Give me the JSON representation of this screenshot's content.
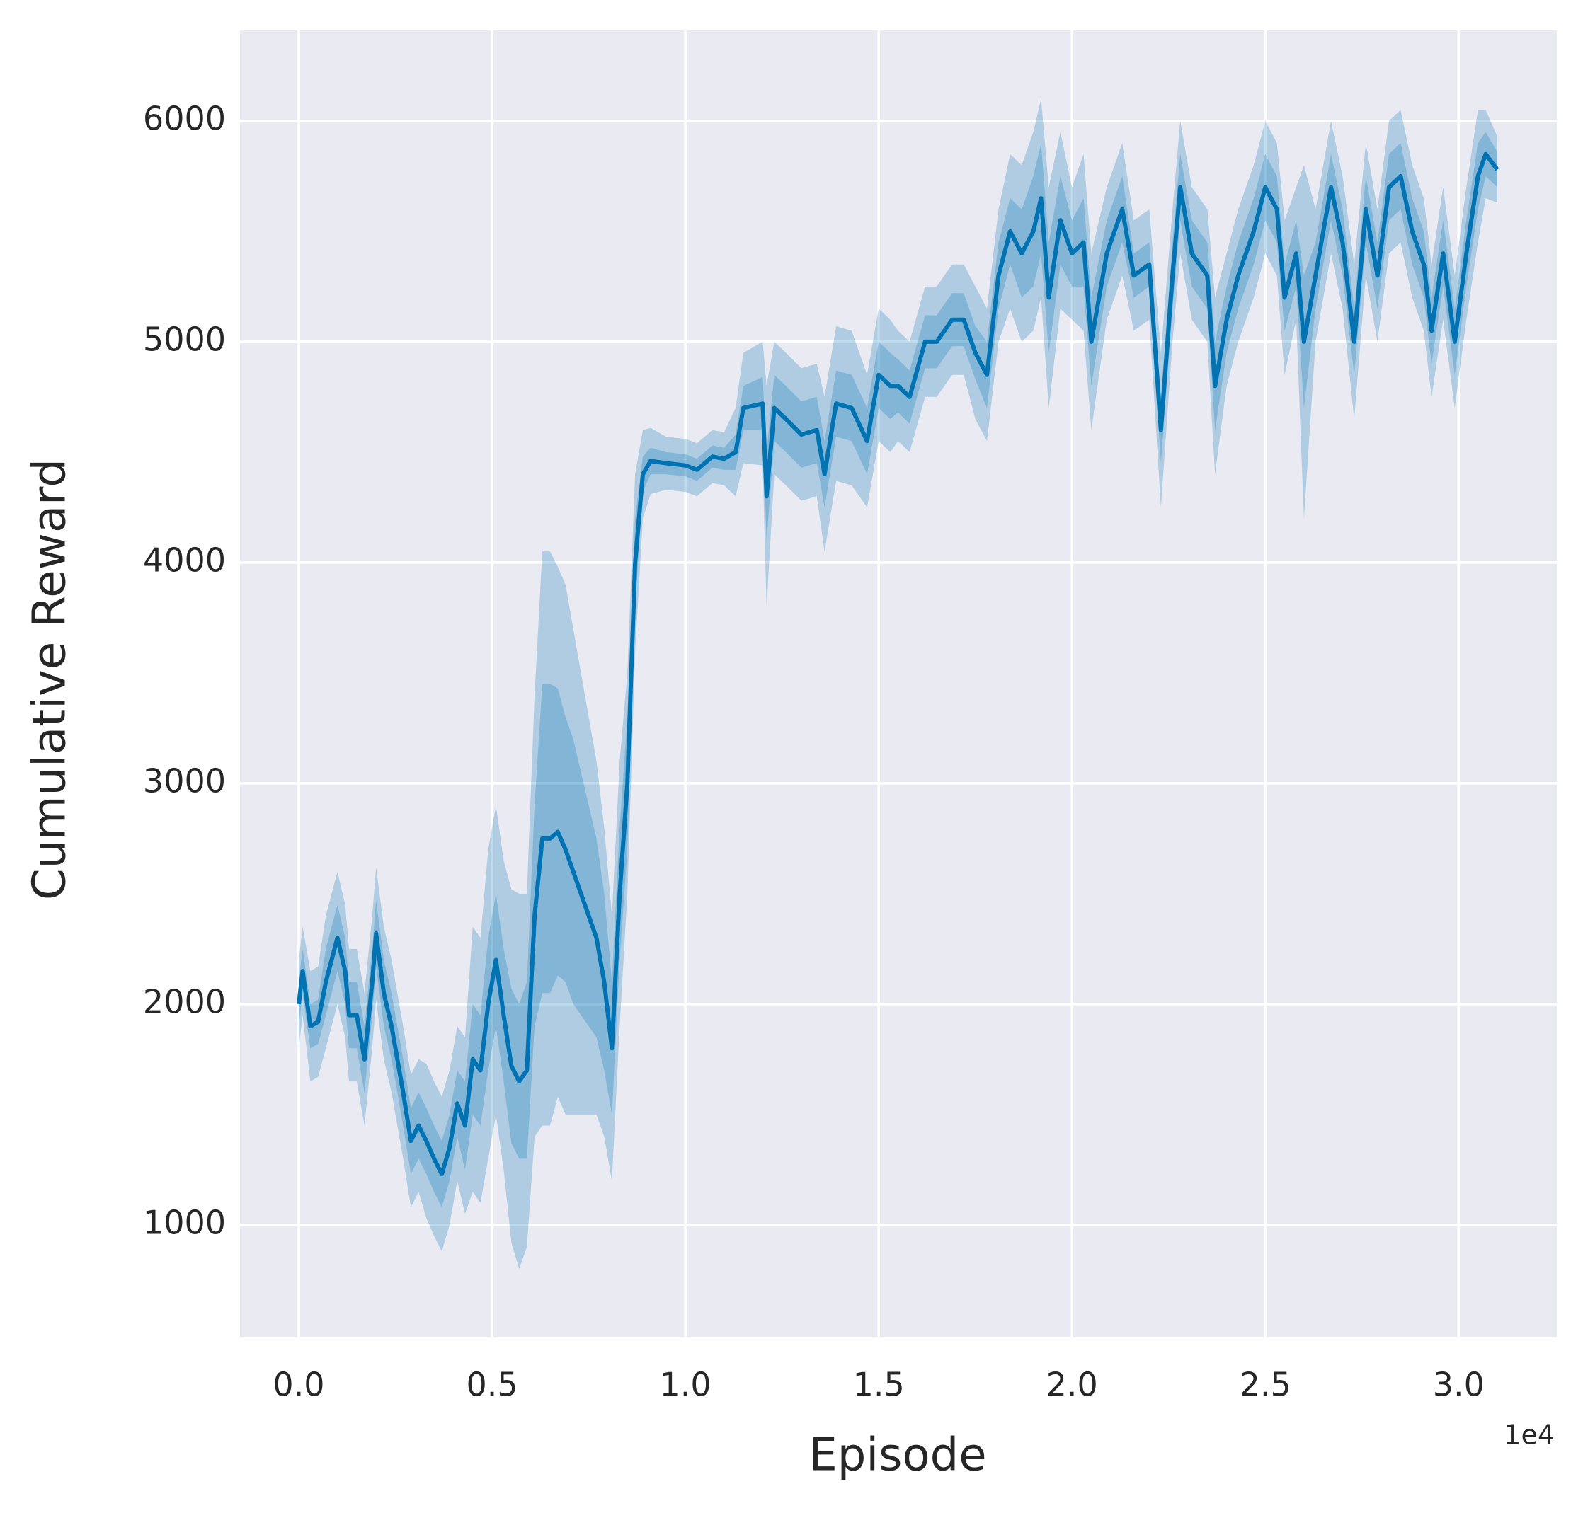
{
  "chart_data": {
    "type": "line",
    "x_label": "Episode",
    "y_label": "Cumulative Reward",
    "x_offset_label": "1e4",
    "xlim": [
      -1520,
      32540
    ],
    "ylim": [
      490,
      6410
    ],
    "xticks": [
      {
        "value": 0,
        "label": "0.0"
      },
      {
        "value": 5000,
        "label": "0.5"
      },
      {
        "value": 10000,
        "label": "1.0"
      },
      {
        "value": 15000,
        "label": "1.5"
      },
      {
        "value": 20000,
        "label": "2.0"
      },
      {
        "value": 25000,
        "label": "2.5"
      },
      {
        "value": 30000,
        "label": "3.0"
      }
    ],
    "yticks": [
      1000,
      2000,
      3000,
      4000,
      5000,
      6000
    ],
    "grid": true,
    "background": "#eaeaf2",
    "x": [
      0,
      100,
      300,
      500,
      700,
      1000,
      1200,
      1300,
      1500,
      1700,
      1900,
      2000,
      2200,
      2400,
      2700,
      2900,
      3100,
      3300,
      3500,
      3700,
      3900,
      4100,
      4300,
      4500,
      4700,
      4900,
      5100,
      5300,
      5500,
      5700,
      5900,
      6100,
      6300,
      6500,
      6700,
      6900,
      7100,
      7300,
      7500,
      7700,
      7900,
      8100,
      8300,
      8500,
      8700,
      8900,
      9100,
      9500,
      10000,
      10300,
      10700,
      11000,
      11300,
      11500,
      12000,
      12100,
      12300,
      12600,
      13000,
      13400,
      13600,
      13900,
      14300,
      14700,
      15000,
      15300,
      15500,
      15800,
      16200,
      16500,
      16900,
      17200,
      17500,
      17800,
      18100,
      18400,
      18700,
      19000,
      19200,
      19400,
      19700,
      20000,
      20300,
      20500,
      20900,
      21300,
      21600,
      22000,
      22300,
      22600,
      22800,
      23100,
      23500,
      23700,
      24000,
      24300,
      24700,
      25000,
      25300,
      25500,
      25800,
      26000,
      26300,
      26700,
      27000,
      27300,
      27600,
      27900,
      28200,
      28500,
      28800,
      29100,
      29300,
      29600,
      29900,
      30200,
      30500,
      30700,
      31000
    ],
    "series": [
      {
        "color": "#0173b2",
        "values": [
          2000,
          2150,
          1900,
          1920,
          2100,
          2300,
          2150,
          1950,
          1950,
          1750,
          2100,
          2320,
          2050,
          1900,
          1600,
          1380,
          1450,
          1380,
          1300,
          1230,
          1350,
          1550,
          1450,
          1750,
          1700,
          2000,
          2200,
          1950,
          1720,
          1650,
          1700,
          2400,
          2750,
          2750,
          2780,
          2700,
          2600,
          2500,
          2400,
          2300,
          2100,
          1800,
          2500,
          3000,
          4000,
          4400,
          4460,
          4450,
          4440,
          4420,
          4480,
          4470,
          4500,
          4700,
          4720,
          4300,
          4700,
          4650,
          4580,
          4600,
          4400,
          4720,
          4700,
          4550,
          4850,
          4800,
          4800,
          4750,
          5000,
          5000,
          5100,
          5100,
          4950,
          4850,
          5300,
          5500,
          5400,
          5500,
          5650,
          5200,
          5550,
          5400,
          5450,
          5000,
          5400,
          5600,
          5300,
          5350,
          4600,
          5300,
          5700,
          5400,
          5300,
          4800,
          5100,
          5300,
          5500,
          5700,
          5600,
          5200,
          5400,
          5000,
          5300,
          5700,
          5450,
          5000,
          5600,
          5300,
          5700,
          5750,
          5500,
          5350,
          5050,
          5400,
          5000,
          5400,
          5750,
          5850,
          5780
        ]
      }
    ],
    "bands": [
      {
        "color": "#0173b2",
        "lower": [
          1800,
          1950,
          1650,
          1670,
          1800,
          2000,
          1850,
          1650,
          1650,
          1450,
          1800,
          2020,
          1750,
          1600,
          1300,
          1080,
          1150,
          1030,
          950,
          880,
          1000,
          1200,
          1050,
          1150,
          1100,
          1300,
          1500,
          1250,
          920,
          800,
          900,
          1400,
          1450,
          1450,
          1580,
          1500,
          1500,
          1500,
          1500,
          1500,
          1400,
          1200,
          1900,
          2500,
          3600,
          4200,
          4310,
          4330,
          4320,
          4300,
          4360,
          4350,
          4300,
          4450,
          4440,
          3800,
          4400,
          4350,
          4280,
          4300,
          4050,
          4370,
          4350,
          4250,
          4550,
          4500,
          4550,
          4500,
          4750,
          4750,
          4850,
          4850,
          4650,
          4550,
          5000,
          5150,
          5000,
          5050,
          5200,
          4700,
          5150,
          5100,
          5050,
          4600,
          5100,
          5300,
          5050,
          5100,
          4250,
          5000,
          5400,
          5100,
          5000,
          4400,
          4800,
          5000,
          5200,
          5400,
          5300,
          4850,
          5100,
          4200,
          5000,
          5400,
          5150,
          4650,
          5300,
          5000,
          5400,
          5450,
          5200,
          5050,
          4750,
          5100,
          4700,
          5100,
          5450,
          5650,
          5630
        ],
        "upper": [
          2200,
          2350,
          2150,
          2170,
          2400,
          2600,
          2450,
          2250,
          2250,
          2050,
          2400,
          2620,
          2350,
          2200,
          1900,
          1680,
          1750,
          1730,
          1650,
          1580,
          1700,
          1900,
          1850,
          2350,
          2300,
          2700,
          2900,
          2650,
          2520,
          2500,
          2500,
          3400,
          4050,
          4050,
          3980,
          3900,
          3700,
          3500,
          3300,
          3100,
          2800,
          2400,
          3100,
          3500,
          4400,
          4600,
          4610,
          4570,
          4560,
          4540,
          4600,
          4590,
          4700,
          4950,
          5000,
          4800,
          5000,
          4950,
          4880,
          4900,
          4750,
          5070,
          5050,
          4850,
          5150,
          5100,
          5050,
          5000,
          5250,
          5250,
          5350,
          5350,
          5250,
          5150,
          5600,
          5850,
          5800,
          5950,
          6100,
          5700,
          5950,
          5700,
          5850,
          5400,
          5700,
          5900,
          5550,
          5600,
          4950,
          5600,
          6000,
          5700,
          5600,
          5200,
          5400,
          5600,
          5800,
          6000,
          5900,
          5550,
          5700,
          5800,
          5600,
          6000,
          5750,
          5350,
          5900,
          5600,
          6000,
          6050,
          5800,
          5650,
          5350,
          5700,
          5300,
          5700,
          6050,
          6050,
          5930
        ]
      },
      {
        "color": "#0173b2",
        "lower": [
          1900,
          2050,
          1800,
          1820,
          1950,
          2150,
          2000,
          1800,
          1800,
          1600,
          1950,
          2170,
          1900,
          1750,
          1450,
          1230,
          1300,
          1230,
          1150,
          1080,
          1200,
          1400,
          1250,
          1500,
          1450,
          1700,
          1900,
          1650,
          1370,
          1300,
          1300,
          1900,
          2050,
          2050,
          2130,
          2100,
          2000,
          1950,
          1900,
          1850,
          1700,
          1500,
          2200,
          2700,
          3800,
          4320,
          4400,
          4400,
          4390,
          4370,
          4430,
          4420,
          4420,
          4600,
          4600,
          4100,
          4550,
          4500,
          4430,
          4450,
          4250,
          4570,
          4550,
          4400,
          4700,
          4650,
          4680,
          4630,
          4880,
          4880,
          4980,
          4980,
          4830,
          4700,
          5150,
          5350,
          5200,
          5250,
          5400,
          4950,
          5350,
          5250,
          5250,
          4800,
          5250,
          5450,
          5200,
          5250,
          4450,
          5150,
          5550,
          5250,
          5150,
          4600,
          4950,
          5150,
          5350,
          5550,
          5450,
          5050,
          5250,
          4700,
          5150,
          5550,
          5300,
          4850,
          5450,
          5150,
          5550,
          5600,
          5350,
          5200,
          4900,
          5250,
          4850,
          5250,
          5600,
          5750,
          5700
        ],
        "upper": [
          2100,
          2250,
          2000,
          2020,
          2250,
          2450,
          2300,
          2100,
          2100,
          1900,
          2250,
          2470,
          2200,
          2050,
          1750,
          1530,
          1600,
          1530,
          1450,
          1380,
          1500,
          1700,
          1650,
          2000,
          1950,
          2300,
          2500,
          2250,
          2070,
          2000,
          2100,
          2900,
          3450,
          3450,
          3430,
          3300,
          3200,
          3050,
          2900,
          2750,
          2500,
          2100,
          2800,
          3300,
          4200,
          4480,
          4520,
          4500,
          4490,
          4470,
          4530,
          4520,
          4580,
          4800,
          4840,
          4500,
          4850,
          4800,
          4730,
          4750,
          4550,
          4870,
          4850,
          4700,
          5000,
          4950,
          4920,
          4870,
          5120,
          5120,
          5220,
          5220,
          5070,
          5000,
          5450,
          5650,
          5600,
          5750,
          5900,
          5450,
          5750,
          5550,
          5650,
          5200,
          5550,
          5750,
          5400,
          5450,
          4750,
          5450,
          5850,
          5550,
          5450,
          5000,
          5250,
          5450,
          5650,
          5850,
          5750,
          5350,
          5550,
          5300,
          5450,
          5850,
          5600,
          5150,
          5750,
          5450,
          5850,
          5900,
          5650,
          5500,
          5200,
          5550,
          5150,
          5550,
          5900,
          5950,
          5860
        ]
      }
    ]
  }
}
